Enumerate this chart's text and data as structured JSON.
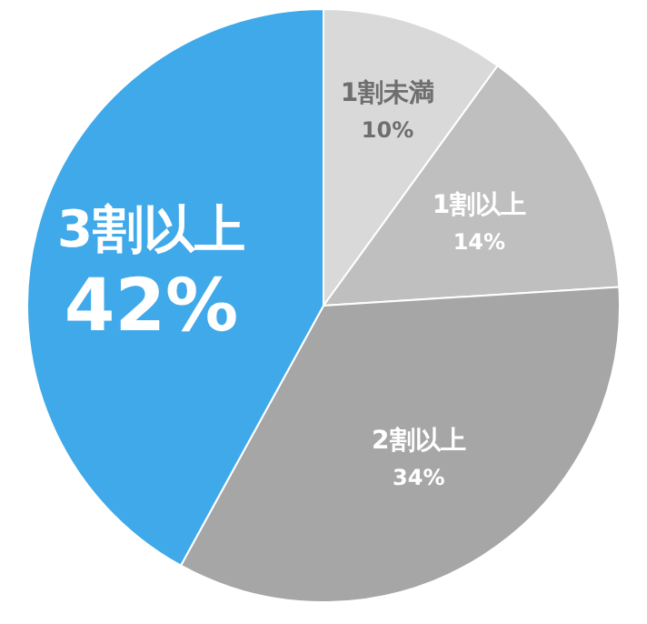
{
  "chart_data": {
    "type": "pie",
    "categories": [
      "1割未満",
      "1割以上",
      "2割以上",
      "3割以上"
    ],
    "values": [
      10,
      14,
      34,
      42
    ],
    "colors": [
      "#d9d9d9",
      "#bfbfbf",
      "#a6a6a6",
      "#3fa9ea"
    ],
    "value_labels": [
      "10%",
      "14%",
      "34%",
      "42%"
    ]
  }
}
